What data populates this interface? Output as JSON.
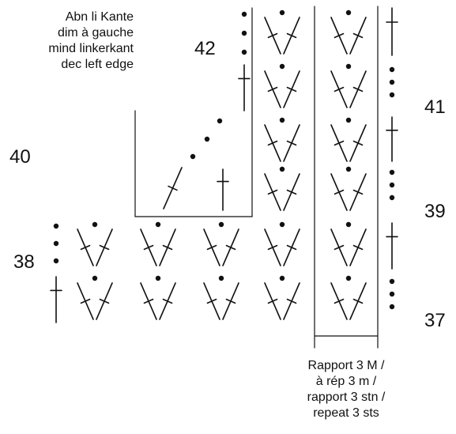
{
  "labels": {
    "row_numbers": {
      "r37": "37",
      "r38": "38",
      "r39": "39",
      "r40": "40",
      "r41": "41",
      "r42": "42"
    },
    "edge_note": [
      "Abn li Kante",
      "dim à gauche",
      "mind linkerkant",
      "dec left edge"
    ],
    "repeat_note": [
      "Rapport 3 M /",
      "à rép 3 m /",
      "rapport 3 stn /",
      "repeat 3 sts"
    ]
  },
  "symbols": {
    "stitch_colour": "#111111",
    "legend": [
      "chain-stitch-dot",
      "treble-crochet-cross",
      "v-cluster-with-chain"
    ]
  }
}
